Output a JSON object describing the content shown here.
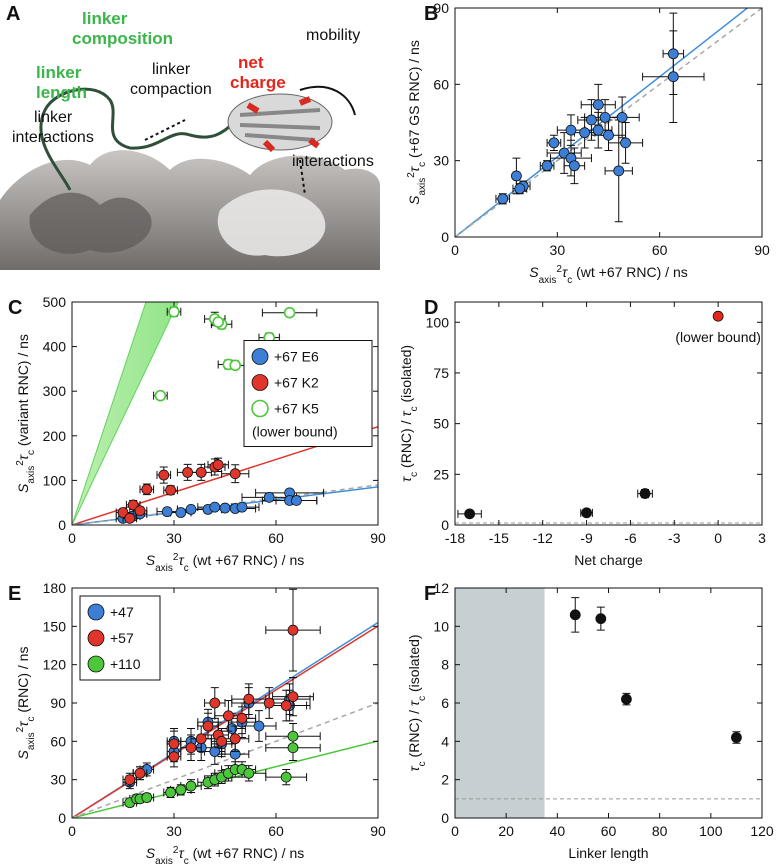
{
  "illustration": {
    "label": "A",
    "composition": [
      "linker",
      "composition"
    ],
    "net_charge": [
      "net",
      "charge"
    ],
    "mobility": "mobility",
    "length": [
      "linker",
      "length"
    ],
    "compaction": [
      "linker",
      "compaction"
    ],
    "linker_interactions": [
      "linker",
      "interactions"
    ],
    "interactions": "interactions"
  },
  "chart_data": [
    {
      "type": "scatter",
      "label": "B",
      "xlim": [
        0,
        90
      ],
      "ylim": [
        0,
        90
      ],
      "xticks": [
        0,
        30,
        60,
        90
      ],
      "yticks": [
        0,
        30,
        60,
        90
      ],
      "xlabel": [
        {
          "t": "S",
          "i": true
        },
        {
          "t": "axis",
          "s": "sub"
        },
        {
          "t": "2",
          "s": "sup"
        },
        {
          "t": "τ",
          "i": true
        },
        {
          "t": "c",
          "s": "sub"
        },
        {
          "t": " (wt +67 RNC) / ns"
        }
      ],
      "ylabel": [
        {
          "t": "S",
          "i": true
        },
        {
          "t": "axis",
          "s": "sub"
        },
        {
          "t": "2",
          "s": "sup"
        },
        {
          "t": "τ",
          "i": true
        },
        {
          "t": "c",
          "s": "sub"
        },
        {
          "t": " (+67 GS RNC) / ns"
        }
      ],
      "lines": [
        {
          "slope": 1.05,
          "color": "#3f8fd8"
        },
        {
          "slope": 1,
          "color": "#a8a8a8",
          "dash": true
        }
      ],
      "series": [
        {
          "color": "#3d7fd6",
          "x": [
            14,
            18,
            20,
            19,
            27,
            29,
            32,
            34,
            34,
            35,
            38,
            40,
            42,
            42,
            44,
            45,
            48,
            49,
            50,
            64,
            64
          ],
          "y": [
            15,
            24,
            20,
            19,
            28,
            37,
            33,
            42,
            31,
            28,
            41,
            46,
            42,
            52,
            47,
            40,
            26,
            47,
            37,
            72,
            63
          ],
          "xerr": [
            2,
            1,
            2,
            2,
            2,
            2,
            5,
            4,
            6,
            3,
            3,
            4,
            4,
            5,
            6,
            5,
            4,
            5,
            5,
            3,
            9
          ],
          "yerr": [
            2,
            7,
            2,
            2,
            2,
            3,
            8,
            6,
            7,
            7,
            6,
            8,
            7,
            8,
            7,
            6,
            20,
            8,
            8,
            16,
            18
          ]
        }
      ]
    },
    {
      "type": "scatter",
      "label": "C",
      "xlim": [
        0,
        90
      ],
      "ylim": [
        0,
        500
      ],
      "xticks": [
        0,
        30,
        60,
        90
      ],
      "yticks": [
        0,
        100,
        200,
        300,
        400,
        500
      ],
      "xlabel": [
        {
          "t": "S",
          "i": true
        },
        {
          "t": "axis",
          "s": "sub"
        },
        {
          "t": "2",
          "s": "sup"
        },
        {
          "t": "τ",
          "i": true
        },
        {
          "t": "c",
          "s": "sub"
        },
        {
          "t": " (wt +67 RNC) / ns"
        }
      ],
      "ylabel": [
        {
          "t": "S",
          "i": true
        },
        {
          "t": "axis",
          "s": "sub"
        },
        {
          "t": "2",
          "s": "sup"
        },
        {
          "t": "τ",
          "i": true
        },
        {
          "t": "c",
          "s": "sub"
        },
        {
          "t": " (variant RNC) / ns"
        }
      ],
      "band": {
        "slopes": [
          16,
          23
        ],
        "color": "#5fd45f"
      },
      "lines": [
        {
          "slope": 2.45,
          "color": "#e0352b"
        },
        {
          "slope": 0.95,
          "color": "#3f8fd8"
        },
        {
          "slope": 1,
          "color": "#a8a8a8",
          "dash": true
        }
      ],
      "legend": "center right",
      "legend_note": "(lower bound)",
      "series": [
        {
          "name": "+67 E6",
          "color": "#3d7fd6",
          "x": [
            15,
            18,
            20,
            28,
            32,
            35,
            40,
            42,
            45,
            48,
            50,
            58,
            64,
            64,
            66
          ],
          "y": [
            15,
            20,
            25,
            30,
            28,
            35,
            35,
            40,
            38,
            37,
            40,
            62,
            72,
            55,
            55
          ],
          "xerr": [
            2,
            2,
            2,
            3,
            3,
            4,
            4,
            5,
            4,
            6,
            5,
            8,
            10,
            8,
            6
          ],
          "yerr": [
            3,
            3,
            4,
            4,
            4,
            5,
            4,
            5,
            5,
            5,
            5,
            8,
            8,
            8,
            8
          ]
        },
        {
          "name": "+67 K2",
          "color": "#e0352b",
          "x": [
            15,
            17,
            18,
            20,
            22,
            27,
            29,
            34,
            38,
            42,
            43,
            48
          ],
          "y": [
            28,
            15,
            45,
            32,
            80,
            112,
            78,
            118,
            118,
            130,
            135,
            115
          ],
          "xerr": [
            2,
            2,
            2,
            2,
            2,
            2,
            2,
            3,
            3,
            3,
            3,
            4
          ],
          "yerr": [
            8,
            5,
            10,
            8,
            12,
            18,
            10,
            18,
            18,
            18,
            15,
            20
          ]
        },
        {
          "name": "+67 K5",
          "color": "#4cc63a",
          "open": true,
          "x": [
            30,
            42,
            44,
            43,
            58,
            64,
            46,
            48,
            26
          ],
          "y": [
            478,
            462,
            450,
            455,
            420,
            476,
            360,
            358,
            290
          ],
          "xerr": [
            2,
            3,
            3,
            2,
            3,
            8,
            3,
            3,
            2
          ],
          "yerr": [
            10,
            15,
            10,
            8,
            10,
            8,
            10,
            8,
            8
          ]
        }
      ]
    },
    {
      "type": "scatter",
      "label": "D",
      "xlim": [
        -18,
        3
      ],
      "ylim": [
        0,
        110
      ],
      "xticks": [
        -18,
        -15,
        -12,
        -9,
        -6,
        -3,
        0,
        3
      ],
      "yticks": [
        0,
        25,
        50,
        75,
        100
      ],
      "xlabel": [
        {
          "t": "Net charge"
        }
      ],
      "ylabel": [
        {
          "t": "τ",
          "i": true
        },
        {
          "t": "c",
          "s": "sub"
        },
        {
          "t": " (RNC) / "
        },
        {
          "t": "τ",
          "i": true
        },
        {
          "t": "c",
          "s": "sub"
        },
        {
          "t": " (isolated)"
        }
      ],
      "reference_y": 1,
      "series": [
        {
          "color": "#111111",
          "x": [
            -17,
            -9,
            -5
          ],
          "y": [
            5.5,
            6,
            15.5
          ],
          "xerr": [
            0.8,
            0.4,
            0.5
          ],
          "yerr": [
            1,
            1,
            2
          ]
        },
        {
          "color": "#e3261b",
          "x": [
            0
          ],
          "y": [
            103
          ],
          "note": "(lower bound)"
        }
      ]
    },
    {
      "type": "scatter",
      "label": "E",
      "xlim": [
        0,
        90
      ],
      "ylim": [
        0,
        180
      ],
      "xticks": [
        0,
        30,
        60,
        90
      ],
      "yticks": [
        0,
        30,
        60,
        90,
        120,
        150,
        180
      ],
      "xlabel": [
        {
          "t": "S",
          "i": true
        },
        {
          "t": "axis",
          "s": "sub"
        },
        {
          "t": "2",
          "s": "sup"
        },
        {
          "t": "τ",
          "i": true
        },
        {
          "t": "c",
          "s": "sub"
        },
        {
          "t": " (wt +67 RNC) / ns"
        }
      ],
      "ylabel": [
        {
          "t": "S",
          "i": true
        },
        {
          "t": "axis",
          "s": "sub"
        },
        {
          "t": "2",
          "s": "sup"
        },
        {
          "t": "τ",
          "i": true
        },
        {
          "t": "c",
          "s": "sub"
        },
        {
          "t": " (RNC) / ns"
        }
      ],
      "lines": [
        {
          "slope": 1.7,
          "color": "#3f8fd8"
        },
        {
          "slope": 1.67,
          "color": "#e0352b"
        },
        {
          "slope": 0.67,
          "color": "#4cc63a"
        },
        {
          "slope": 1,
          "color": "#a8a8a8",
          "dash": true
        }
      ],
      "legend": "upper left",
      "series": [
        {
          "name": "+47",
          "color": "#3d7fd6",
          "x": [
            17,
            20,
            22,
            30,
            30,
            35,
            38,
            40,
            42,
            44,
            47,
            48,
            50,
            52,
            55,
            64,
            64
          ],
          "y": [
            28,
            35,
            38,
            60,
            52,
            60,
            55,
            75,
            52,
            58,
            70,
            50,
            75,
            90,
            72,
            93,
            88
          ],
          "xerr": [
            2,
            2,
            2,
            2,
            2,
            3,
            3,
            3,
            3,
            3,
            4,
            4,
            4,
            5,
            5,
            6,
            6
          ],
          "yerr": [
            5,
            5,
            5,
            10,
            8,
            10,
            10,
            10,
            10,
            10,
            12,
            10,
            12,
            12,
            12,
            12,
            12
          ]
        },
        {
          "name": "+57",
          "color": "#e0352b",
          "x": [
            17,
            20,
            30,
            30,
            35,
            38,
            40,
            42,
            43,
            44,
            46,
            48,
            50,
            52,
            58,
            63,
            65,
            65
          ],
          "y": [
            30,
            35,
            58,
            48,
            55,
            62,
            72,
            90,
            65,
            60,
            80,
            62,
            78,
            93,
            90,
            88,
            95,
            147
          ],
          "xerr": [
            2,
            2,
            2,
            2,
            3,
            3,
            3,
            3,
            3,
            3,
            4,
            4,
            4,
            5,
            6,
            6,
            6,
            8
          ],
          "yerr": [
            5,
            5,
            10,
            8,
            10,
            10,
            10,
            12,
            10,
            10,
            12,
            10,
            12,
            12,
            12,
            12,
            15,
            32
          ]
        },
        {
          "name": "+110",
          "color": "#4cc63a",
          "x": [
            17,
            19,
            20,
            22,
            29,
            32,
            35,
            40,
            42,
            44,
            46,
            48,
            50,
            52,
            63,
            65,
            65
          ],
          "y": [
            12,
            15,
            15,
            16,
            20,
            22,
            25,
            28,
            30,
            32,
            35,
            38,
            38,
            35,
            32,
            64,
            55
          ],
          "xerr": [
            2,
            2,
            2,
            2,
            2,
            3,
            3,
            3,
            3,
            3,
            4,
            4,
            4,
            5,
            6,
            8,
            8
          ],
          "yerr": [
            3,
            3,
            3,
            3,
            4,
            4,
            5,
            5,
            5,
            5,
            6,
            6,
            6,
            6,
            6,
            10,
            10
          ]
        }
      ]
    },
    {
      "type": "scatter",
      "label": "F",
      "xlim": [
        0,
        120
      ],
      "ylim": [
        0,
        12
      ],
      "xticks": [
        0,
        20,
        40,
        60,
        80,
        100,
        120
      ],
      "yticks": [
        0,
        2,
        4,
        6,
        8,
        10,
        12
      ],
      "xlabel": [
        {
          "t": "Linker length"
        }
      ],
      "ylabel": [
        {
          "t": "τ",
          "i": true
        },
        {
          "t": "c",
          "s": "sub"
        },
        {
          "t": " (RNC) / "
        },
        {
          "t": "τ",
          "i": true
        },
        {
          "t": "c",
          "s": "sub"
        },
        {
          "t": " (isolated)"
        }
      ],
      "reference_y": 1,
      "shaded_x": [
        0,
        35
      ],
      "shade_color": "#c6cfd2",
      "series": [
        {
          "color": "#111111",
          "x": [
            47,
            57,
            67,
            110
          ],
          "y": [
            10.6,
            10.4,
            6.2,
            4.2
          ],
          "yerr": [
            0.9,
            0.6,
            0.3,
            0.3
          ]
        }
      ]
    }
  ]
}
